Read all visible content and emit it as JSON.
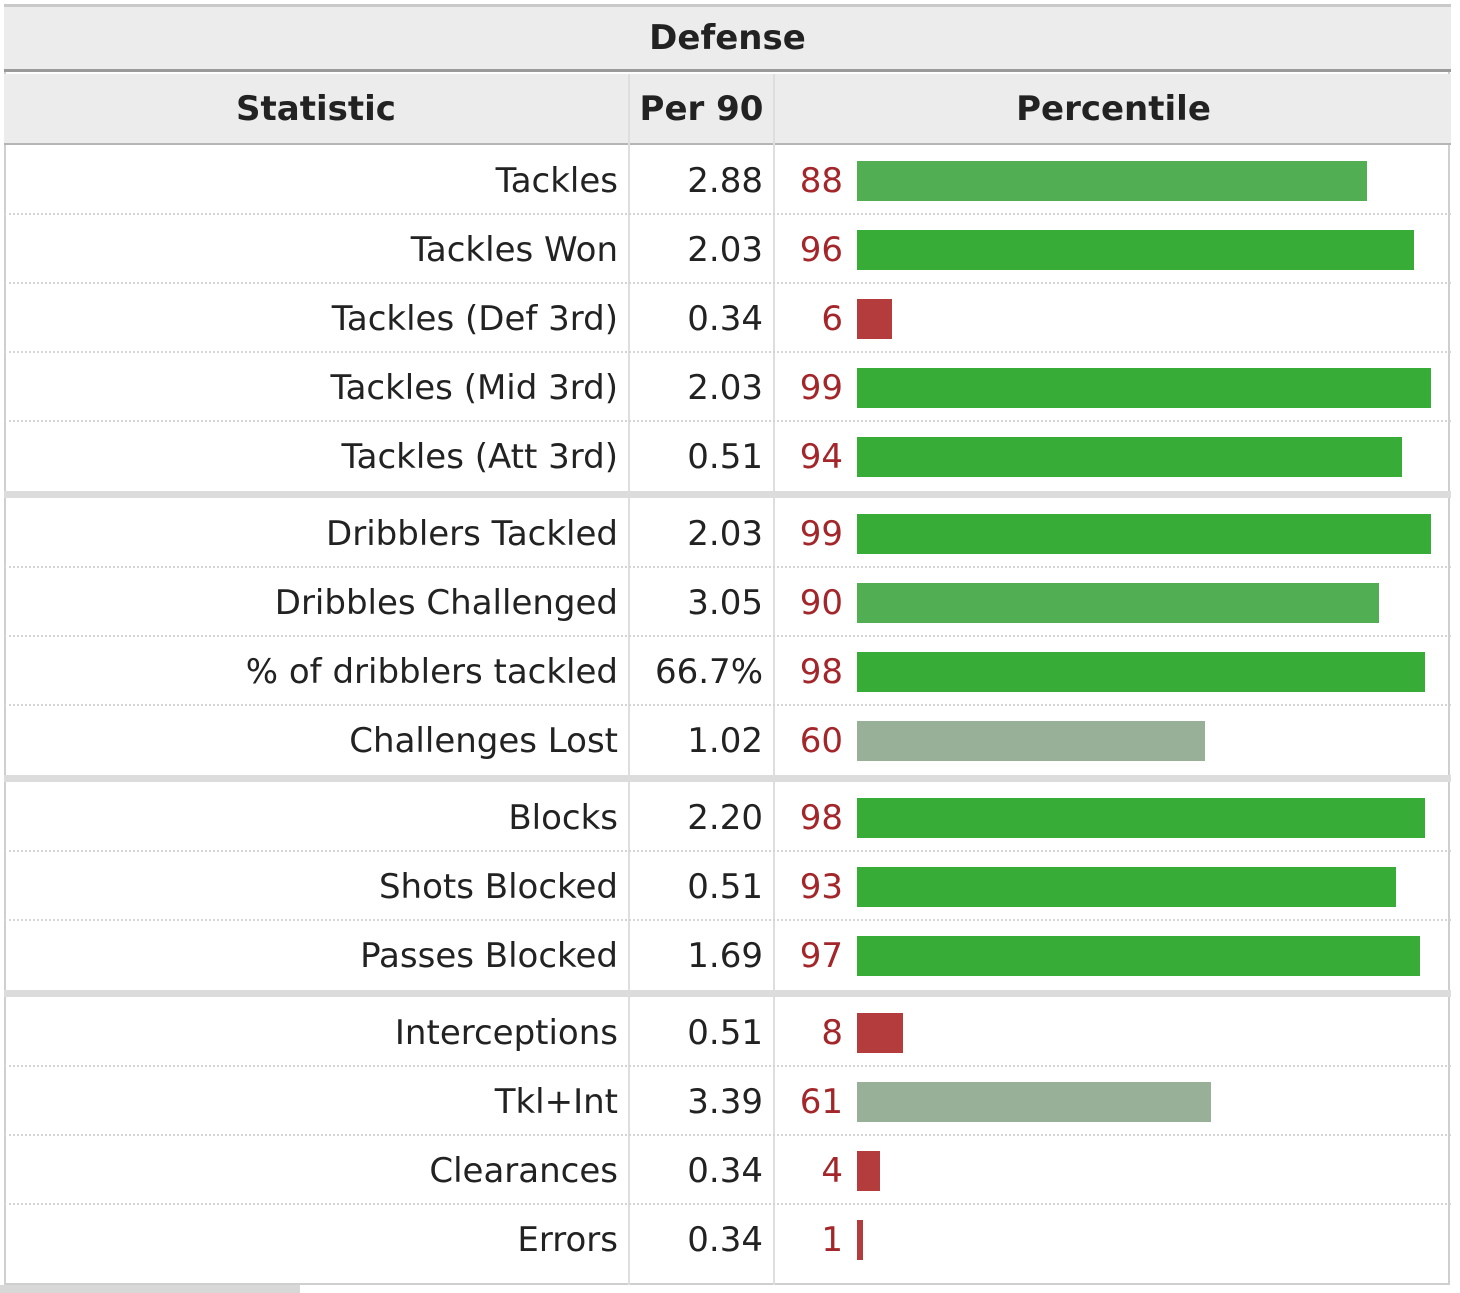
{
  "table": {
    "title": "Defense",
    "headers": {
      "statistic": "Statistic",
      "per90": "Per 90",
      "percentile": "Percentile"
    }
  },
  "colors": {
    "high": "#37ad37",
    "above": "#52ae52",
    "mid": "#97b097",
    "low": "#b43c3c",
    "percentile_text": "#a3262a"
  },
  "chart_data": {
    "type": "bar",
    "title": "Defense",
    "xlabel": "",
    "ylabel": "Percentile",
    "ylim": [
      0,
      100
    ],
    "groups": [
      [
        {
          "statistic": "Tackles",
          "per90": "2.88",
          "percentile": 88
        },
        {
          "statistic": "Tackles Won",
          "per90": "2.03",
          "percentile": 96
        },
        {
          "statistic": "Tackles (Def 3rd)",
          "per90": "0.34",
          "percentile": 6
        },
        {
          "statistic": "Tackles (Mid 3rd)",
          "per90": "2.03",
          "percentile": 99
        },
        {
          "statistic": "Tackles (Att 3rd)",
          "per90": "0.51",
          "percentile": 94
        }
      ],
      [
        {
          "statistic": "Dribblers Tackled",
          "per90": "2.03",
          "percentile": 99
        },
        {
          "statistic": "Dribbles Challenged",
          "per90": "3.05",
          "percentile": 90
        },
        {
          "statistic": "% of dribblers tackled",
          "per90": "66.7%",
          "percentile": 98
        },
        {
          "statistic": "Challenges Lost",
          "per90": "1.02",
          "percentile": 60
        }
      ],
      [
        {
          "statistic": "Blocks",
          "per90": "2.20",
          "percentile": 98
        },
        {
          "statistic": "Shots Blocked",
          "per90": "0.51",
          "percentile": 93
        },
        {
          "statistic": "Passes Blocked",
          "per90": "1.69",
          "percentile": 97
        }
      ],
      [
        {
          "statistic": "Interceptions",
          "per90": "0.51",
          "percentile": 8
        },
        {
          "statistic": "Tkl+Int",
          "per90": "3.39",
          "percentile": 61
        },
        {
          "statistic": "Clearances",
          "per90": "0.34",
          "percentile": 4
        },
        {
          "statistic": "Errors",
          "per90": "0.34",
          "percentile": 1
        }
      ]
    ]
  }
}
